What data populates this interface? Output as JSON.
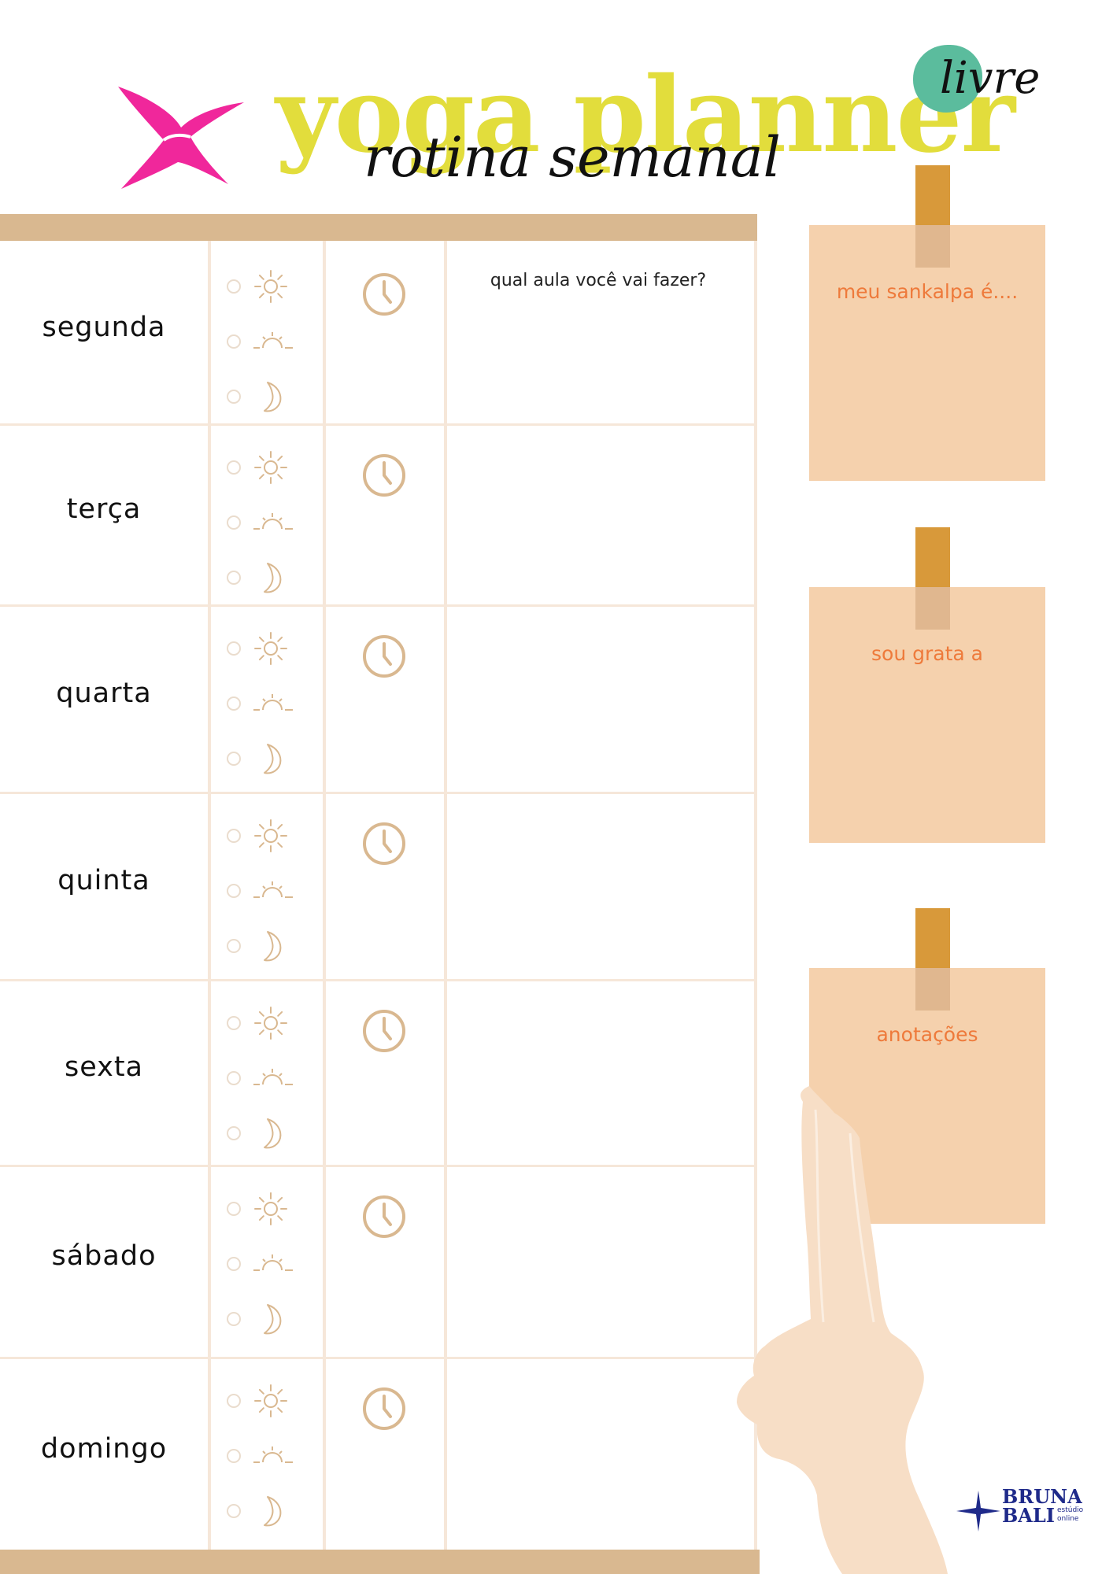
{
  "header": {
    "title": "yoga planner",
    "subtitle": "rotina semanal",
    "badge": "livre"
  },
  "table": {
    "question": "qual aula você vai fazer?",
    "days": [
      {
        "label": "segunda"
      },
      {
        "label": "terça"
      },
      {
        "label": "quarta"
      },
      {
        "label": "quinta"
      },
      {
        "label": "sexta"
      },
      {
        "label": "sábado"
      },
      {
        "label": "domingo"
      }
    ],
    "time_options": [
      "sun-icon",
      "sunrise-icon",
      "moon-icon"
    ]
  },
  "notes": [
    {
      "label": "meu sankalpa é...."
    },
    {
      "label": "sou grata a"
    },
    {
      "label": "anotações"
    }
  ],
  "brand": {
    "name_line1": "BRUNA",
    "name_line2": "BALI",
    "sub_line1": "estúdio",
    "sub_line2": "online"
  },
  "colors": {
    "title": "#e2dd3c",
    "logo": "#f0279b",
    "badge": "#5bbc9d",
    "bar": "#d9b890",
    "icons": "#d9b890",
    "note_bg": "#f5d1ad",
    "note_text": "#ee7a3b",
    "tape": "#d8993a",
    "brand": "#1f2a8a"
  }
}
